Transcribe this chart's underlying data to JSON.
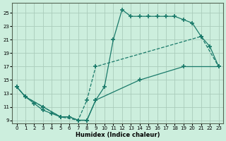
{
  "title": "",
  "xlabel": "Humidex (Indice chaleur)",
  "bg_color": "#cceedd",
  "line_color": "#1a7a6a",
  "grid_color": "#aaccbb",
  "xlim": [
    -0.5,
    23.5
  ],
  "ylim": [
    8.5,
    26.5
  ],
  "xticks": [
    0,
    1,
    2,
    3,
    4,
    5,
    6,
    7,
    8,
    9,
    10,
    11,
    12,
    13,
    14,
    15,
    16,
    17,
    18,
    19,
    20,
    21,
    22,
    23
  ],
  "yticks": [
    9,
    11,
    13,
    15,
    17,
    19,
    21,
    23,
    25
  ],
  "line1_x": [
    0,
    1,
    2,
    3,
    4,
    5,
    6,
    7,
    8,
    9,
    10,
    11,
    12,
    13,
    14,
    15,
    16,
    17,
    18,
    19,
    20,
    21,
    22,
    23
  ],
  "line1_y": [
    14,
    12.5,
    11.5,
    10.5,
    10,
    9.5,
    9.5,
    9,
    9,
    12,
    14,
    21,
    25.5,
    24.5,
    24.5,
    24.5,
    24.5,
    24.5,
    24.5,
    24,
    23.5,
    21.5,
    20,
    17
  ],
  "line2_x": [
    0,
    1,
    3,
    5,
    7,
    8,
    9,
    21,
    23
  ],
  "line2_y": [
    14,
    12.5,
    11,
    9.5,
    9,
    12,
    17,
    21.5,
    17
  ],
  "line3_x": [
    0,
    1,
    3,
    5,
    6,
    7,
    8,
    9,
    14,
    19,
    23
  ],
  "line3_y": [
    14,
    12.5,
    11,
    9.5,
    9.5,
    9,
    9,
    12,
    15,
    17,
    17
  ]
}
